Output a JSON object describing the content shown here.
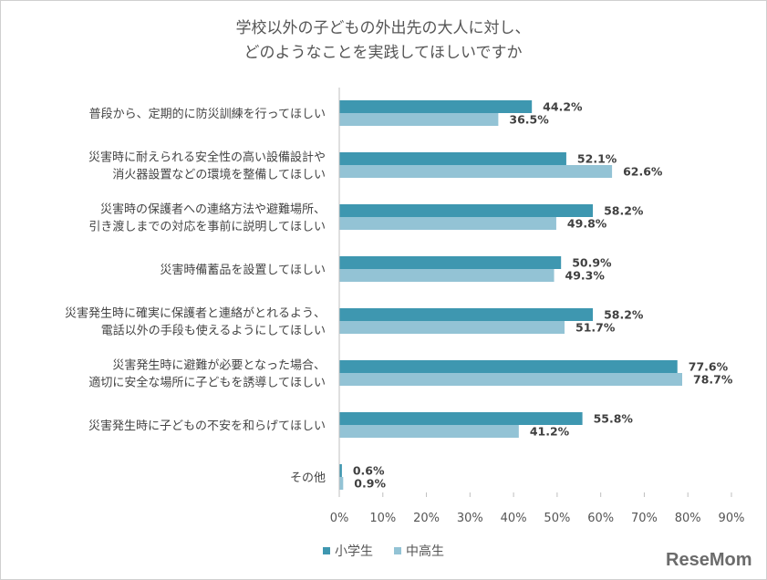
{
  "chart_data": {
    "type": "bar",
    "orientation": "horizontal",
    "title": [
      "学校以外の子どもの外出先の大人に対し、",
      "どのようなことを実践してほしいですか"
    ],
    "categories": [
      [
        "普段から、定期的に防災訓練を行ってほしい"
      ],
      [
        "災害時に耐えられる安全性の高い設備設計や",
        "消火器設置などの環境を整備してほしい"
      ],
      [
        "災害時の保護者への連絡方法や避難場所、",
        "引き渡しまでの対応を事前に説明してほしい"
      ],
      [
        "災害時備蓄品を設置してほしい"
      ],
      [
        "災害発生時に確実に保護者と連絡がとれるよう、",
        "電話以外の手段も使えるようにしてほしい"
      ],
      [
        "災害発生時に避難が必要となった場合、",
        "適切に安全な場所に子どもを誘導してほしい"
      ],
      [
        "災害発生時に子どもの不安を和らげてほしい"
      ],
      [
        "その他"
      ]
    ],
    "series": [
      {
        "name": "小学生",
        "color": "#3e97b0",
        "values": [
          44.2,
          52.1,
          58.2,
          50.9,
          58.2,
          77.6,
          55.8,
          0.6
        ]
      },
      {
        "name": "中高生",
        "color": "#93c3d5",
        "values": [
          36.5,
          62.6,
          49.8,
          49.3,
          51.7,
          78.7,
          41.2,
          0.9
        ]
      }
    ],
    "xlim": [
      0,
      90
    ],
    "xticks": [
      0,
      10,
      20,
      30,
      40,
      50,
      60,
      70,
      80,
      90
    ],
    "tick_suffix": "%",
    "legend": "bottom-left",
    "grid": false
  },
  "logo": "ReseMom"
}
